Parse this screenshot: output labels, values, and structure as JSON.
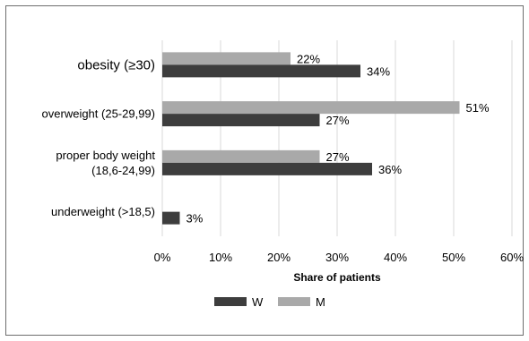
{
  "chart_data": {
    "type": "bar",
    "orientation": "horizontal",
    "categories": [
      "obesity (≥30)",
      "overweight (25-29,99)",
      "proper body weight (18,6-24,99)",
      "underweight (>18,5)"
    ],
    "category_lines": [
      [
        "obesity (≥30)"
      ],
      [
        "overweight (25-29,99)"
      ],
      [
        "proper body weight",
        "(18,6-24,99)"
      ],
      [
        "underweight (>18,5)"
      ]
    ],
    "series": [
      {
        "name": "M",
        "color": "#a9a9a9",
        "values": [
          22,
          51,
          27,
          null
        ],
        "labels": [
          "22%",
          "51%",
          "27%",
          ""
        ]
      },
      {
        "name": "W",
        "color": "#3d3d3d",
        "values": [
          34,
          27,
          36,
          3
        ],
        "labels": [
          "34%",
          "27%",
          "36%",
          "3%"
        ]
      }
    ],
    "xlim": [
      0,
      60
    ],
    "xticks": [
      "0%",
      "10%",
      "20%",
      "30%",
      "40%",
      "50%",
      "60%"
    ],
    "xlabel": "Share of patients",
    "ylabel": "",
    "title": "",
    "grid": true,
    "legend": {
      "position": "bottom",
      "items": [
        {
          "name": "W",
          "color": "#3d3d3d"
        },
        {
          "name": "M",
          "color": "#a9a9a9"
        }
      ]
    }
  }
}
